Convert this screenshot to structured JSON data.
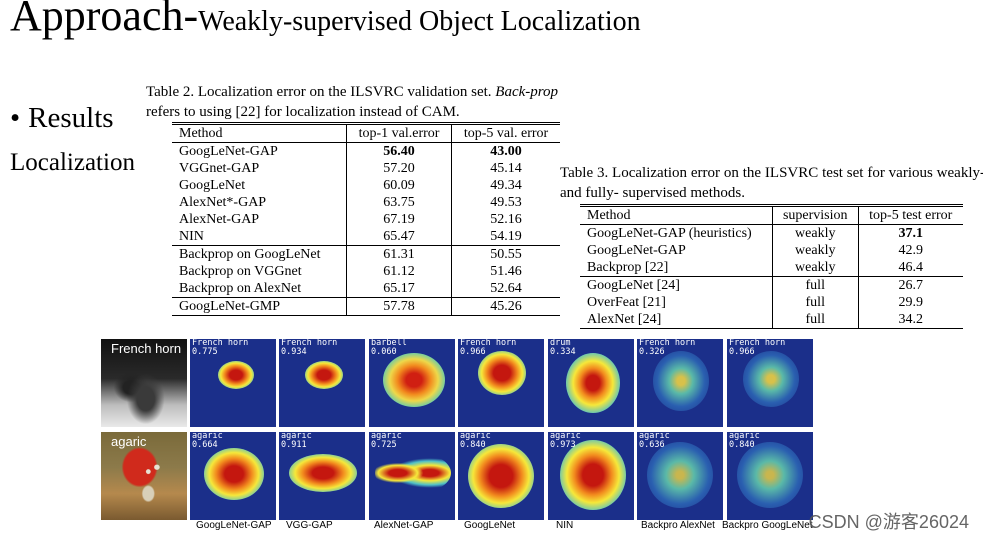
{
  "slide": {
    "title_main": "Approach-",
    "title_sub": "Weakly-supervised Object Localization",
    "bullet": "Results",
    "subheading": "Localization"
  },
  "table2": {
    "caption_plain": "Table 2. Localization error on the ILSVRC validation set.",
    "caption_italic": "Back-prop",
    "caption_rest": "refers to using [22] for localization instead of CAM.",
    "headers": [
      "Method",
      "top-1 val.error",
      "top-5 val. error"
    ],
    "groups": [
      [
        [
          "GoogLeNet-GAP",
          "56.40",
          "43.00"
        ],
        [
          "VGGnet-GAP",
          "57.20",
          "45.14"
        ],
        [
          "GoogLeNet",
          "60.09",
          "49.34"
        ],
        [
          "AlexNet*-GAP",
          "63.75",
          "49.53"
        ],
        [
          "AlexNet-GAP",
          "67.19",
          "52.16"
        ],
        [
          "NIN",
          "65.47",
          "54.19"
        ]
      ],
      [
        [
          "Backprop on GoogLeNet",
          "61.31",
          "50.55"
        ],
        [
          "Backprop on VGGnet",
          "61.12",
          "51.46"
        ],
        [
          "Backprop on AlexNet",
          "65.17",
          "52.64"
        ]
      ],
      [
        [
          "GoogLeNet-GMP",
          "57.78",
          "45.26"
        ]
      ]
    ]
  },
  "table3": {
    "caption": "Table 3. Localization error on the ILSVRC test set for various weakly- and fully- supervised methods.",
    "headers": [
      "Method",
      "supervision",
      "top-5 test error"
    ],
    "groups": [
      [
        [
          "GoogLeNet-GAP (heuristics)",
          "weakly",
          "37.1"
        ],
        [
          "GoogLeNet-GAP",
          "weakly",
          "42.9"
        ],
        [
          "Backprop [22]",
          "weakly",
          "46.4"
        ]
      ],
      [
        [
          "GoogLeNet [24]",
          "full",
          "26.7"
        ],
        [
          "OverFeat [21]",
          "full",
          "29.9"
        ],
        [
          "AlexNet [24]",
          "full",
          "34.2"
        ]
      ]
    ]
  },
  "figure": {
    "rows": [
      {
        "label": "French horn",
        "cells": [
          {
            "class": "French horn",
            "score": "0.775"
          },
          {
            "class": "French horn",
            "score": "0.934"
          },
          {
            "class": "barbell",
            "score": "0.060"
          },
          {
            "class": "French horn",
            "score": "0.966"
          },
          {
            "class": "drum",
            "score": "0.334"
          },
          {
            "class": "French horn",
            "score": "0.326"
          },
          {
            "class": "French horn",
            "score": "0.966"
          }
        ]
      },
      {
        "label": "agaric",
        "cells": [
          {
            "class": "agaric",
            "score": "0.664"
          },
          {
            "class": "agaric",
            "score": "0.911"
          },
          {
            "class": "agaric",
            "score": "0.725"
          },
          {
            "class": "agaric",
            "score": "0.840"
          },
          {
            "class": "agaric",
            "score": "0.973"
          },
          {
            "class": "agaric",
            "score": "0.636"
          },
          {
            "class": "agaric",
            "score": "0.840"
          }
        ]
      }
    ],
    "columns": [
      "GoogLeNet-GAP",
      "VGG-GAP",
      "AlexNet-GAP",
      "GoogLeNet",
      "NIN",
      "Backpro AlexNet",
      "Backpro GoogLeNet"
    ]
  },
  "watermark": "CSDN @游客26024"
}
